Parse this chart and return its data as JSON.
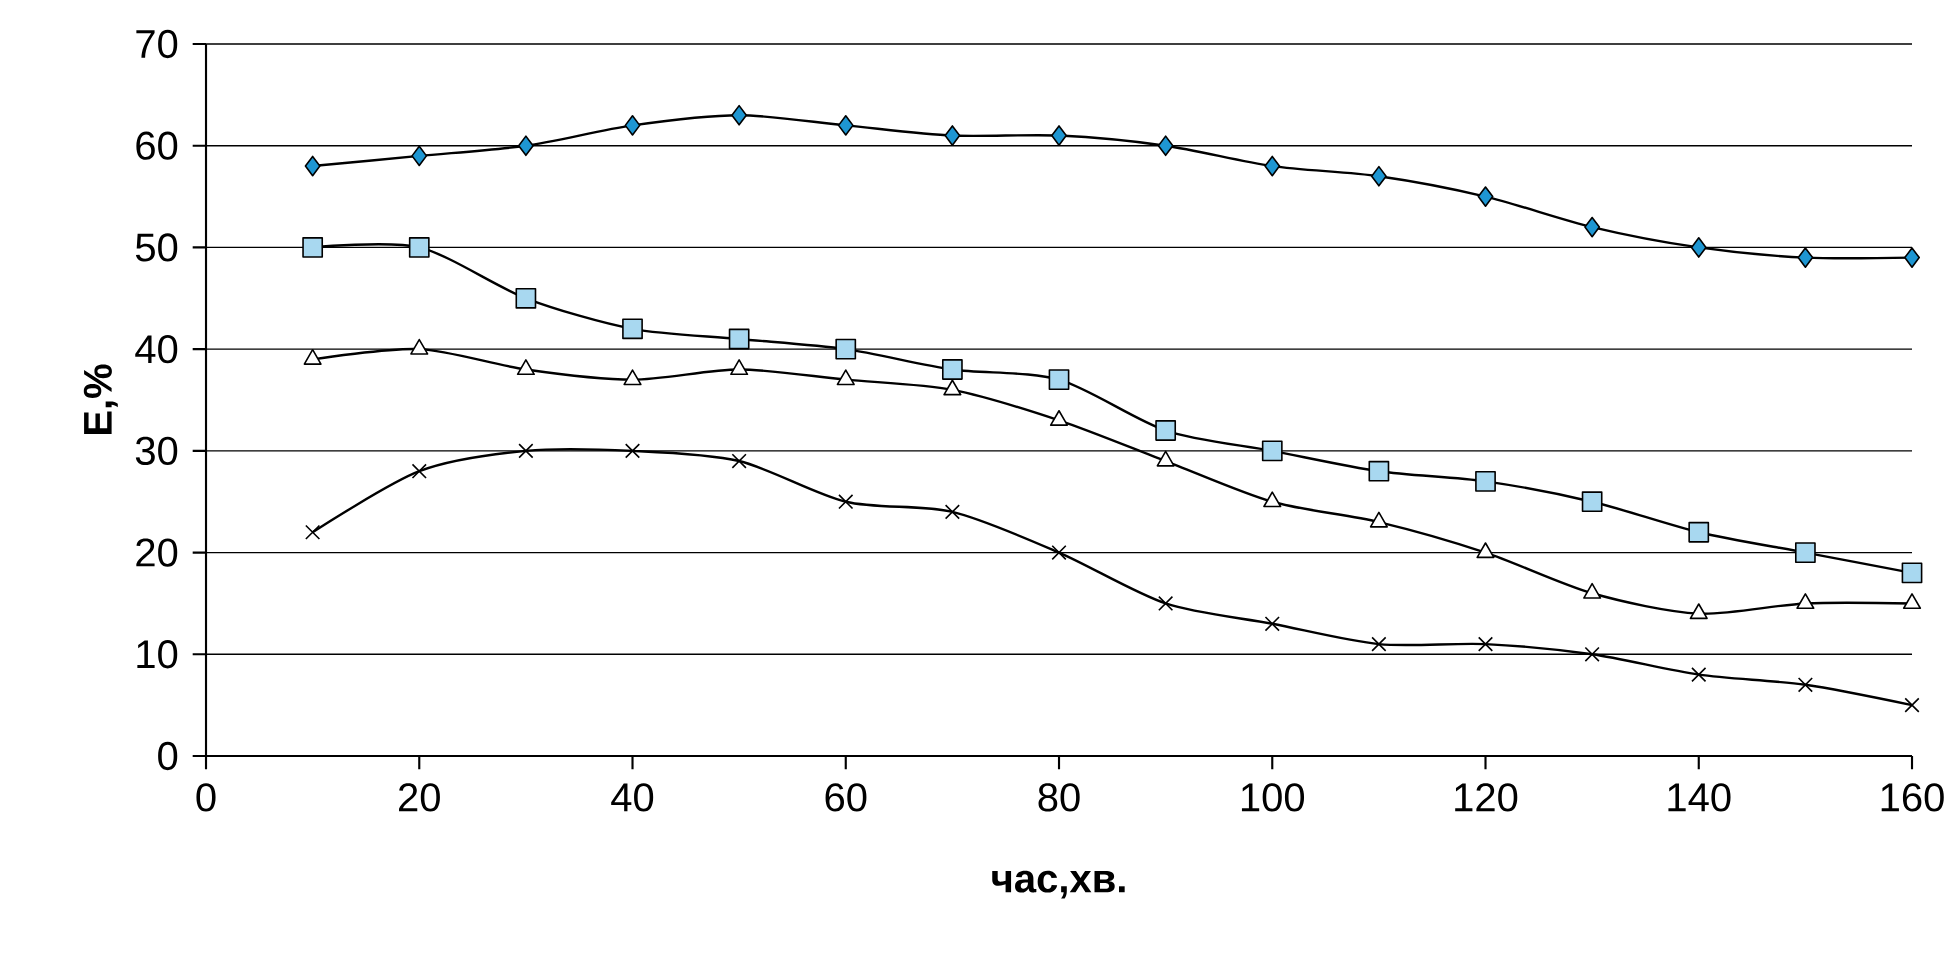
{
  "chart_data": {
    "type": "line",
    "xlabel": "час,хв.",
    "ylabel": "E,%",
    "x": [
      10,
      20,
      30,
      40,
      50,
      60,
      70,
      80,
      90,
      100,
      110,
      120,
      130,
      140,
      150,
      160
    ],
    "series": [
      {
        "color": "#1e96d2",
        "marker": "diamond",
        "values": [
          58,
          59,
          60,
          62,
          63,
          62,
          61,
          61,
          60,
          58,
          57,
          55,
          52,
          50,
          49,
          49
        ]
      },
      {
        "color": "#a8d8f0",
        "marker": "square",
        "values": [
          50,
          50,
          45,
          42,
          41,
          40,
          38,
          37,
          32,
          30,
          28,
          27,
          25,
          22,
          20,
          18
        ]
      },
      {
        "color": "#ffffff",
        "marker": "triangle",
        "values": [
          39,
          40,
          38,
          37,
          38,
          37,
          36,
          33,
          29,
          25,
          23,
          20,
          16,
          14,
          15,
          15
        ]
      },
      {
        "color": "#000000",
        "marker": "cross",
        "values": [
          22,
          28,
          30,
          30,
          29,
          25,
          24,
          20,
          15,
          13,
          11,
          11,
          10,
          8,
          7,
          5
        ]
      }
    ],
    "xlim": [
      0,
      160
    ],
    "xticks": [
      0,
      20,
      40,
      60,
      80,
      100,
      120,
      140,
      160
    ],
    "ylim": [
      0,
      70
    ],
    "yticks": [
      0,
      10,
      20,
      30,
      40,
      50,
      60,
      70
    ],
    "grid": "y"
  }
}
